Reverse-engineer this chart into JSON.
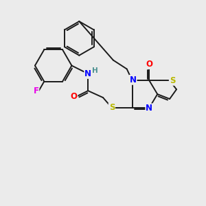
{
  "background_color": "#ebebeb",
  "bond_color": "#1a1a1a",
  "atom_colors": {
    "F": "#e800e8",
    "N": "#0000ff",
    "O": "#ff0000",
    "S": "#b8b800",
    "H": "#4a9090",
    "C": "#1a1a1a"
  },
  "font_size": 8.5,
  "lw": 1.4,
  "figsize": [
    3.0,
    3.0
  ],
  "dpi": 100
}
